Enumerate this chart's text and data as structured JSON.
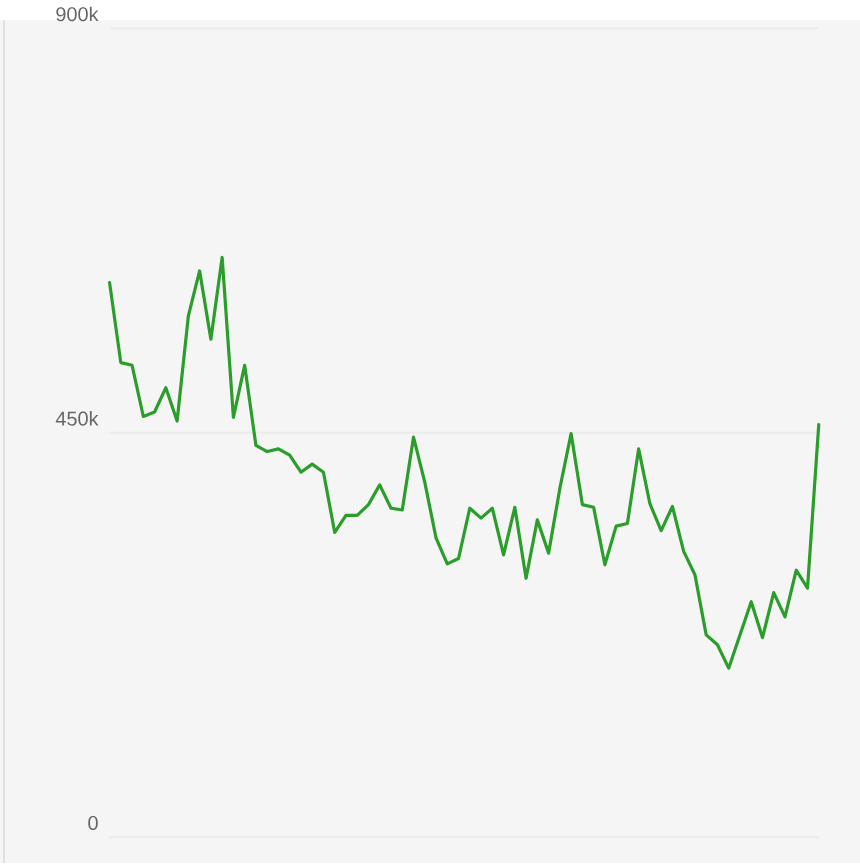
{
  "chart_data": {
    "type": "line",
    "categories": [
      null,
      null,
      null,
      null,
      null,
      null,
      null,
      null,
      null,
      null,
      null,
      null,
      null,
      null,
      null,
      null,
      null,
      null,
      null,
      null,
      null,
      null,
      null,
      null,
      null,
      null,
      null,
      null,
      null,
      null,
      null,
      null,
      null,
      null,
      null,
      null,
      null,
      null,
      null,
      null,
      null,
      null,
      null,
      null,
      null,
      null,
      null,
      null,
      null,
      null,
      null,
      null,
      null,
      null,
      null,
      null,
      null,
      null,
      null,
      null,
      null,
      null,
      null,
      null
    ],
    "series": [
      {
        "color": "#2a9d2a",
        "values": [
          617000,
          528000,
          525000,
          468000,
          473000,
          500000,
          463000,
          580000,
          630000,
          554000,
          645000,
          467000,
          525000,
          436000,
          429000,
          432000,
          425000,
          406000,
          415000,
          406000,
          339000,
          358000,
          358000,
          370000,
          392000,
          366000,
          364000,
          445000,
          395000,
          333000,
          304000,
          310000,
          366000,
          355000,
          366000,
          314000,
          367000,
          288000,
          353000,
          316000,
          388000,
          449000,
          370000,
          367000,
          303000,
          346000,
          349000,
          432000,
          371000,
          341000,
          368000,
          318000,
          292000,
          225000,
          214000,
          188000,
          225000,
          262000,
          222000,
          272000,
          245000,
          297000,
          277000,
          459000
        ]
      }
    ],
    "ylim": [
      0,
      900000
    ],
    "yticks": [
      {
        "value": 0,
        "label": "0"
      },
      {
        "value": 450000,
        "label": "450k"
      },
      {
        "value": 900000,
        "label": "900k"
      }
    ],
    "grid": "y",
    "tick_labels": "y"
  }
}
